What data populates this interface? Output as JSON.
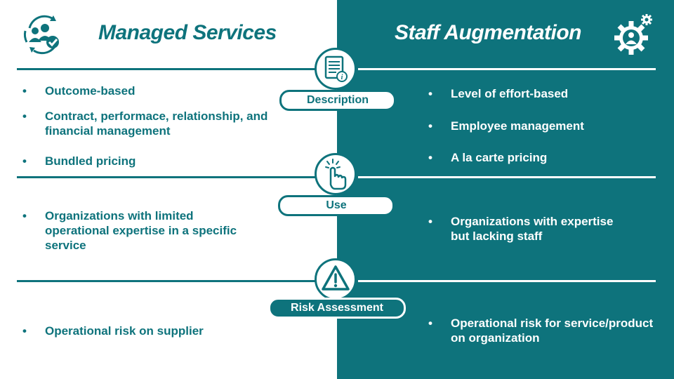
{
  "left": {
    "title": "Managed Services",
    "description_items": [
      "Outcome-based",
      "Contract, performace, relationship, and financial management",
      "Bundled pricing"
    ],
    "use_items": [
      "Organizations with limited operational expertise in a specific service"
    ],
    "risk_items": [
      "Operational risk on supplier"
    ]
  },
  "right": {
    "title": "Staff Augmentation",
    "description_items": [
      "Level of effort-based",
      "Employee management",
      "A la carte pricing"
    ],
    "use_items": [
      "Organizations with expertise but lacking staff"
    ],
    "risk_items": [
      "Operational risk for service/product on organization"
    ]
  },
  "sections": {
    "description": "Description",
    "use": "Use",
    "risk": "Risk Assessment"
  },
  "bullet_symbol": "•",
  "icons": {
    "left_header": "team-cycle-check-icon",
    "right_header": "gear-person-icon",
    "description": "document-info-icon",
    "use": "pointer-hand-icon",
    "risk": "warning-triangle-icon"
  },
  "colors": {
    "teal": "#0e737c",
    "white": "#ffffff"
  }
}
